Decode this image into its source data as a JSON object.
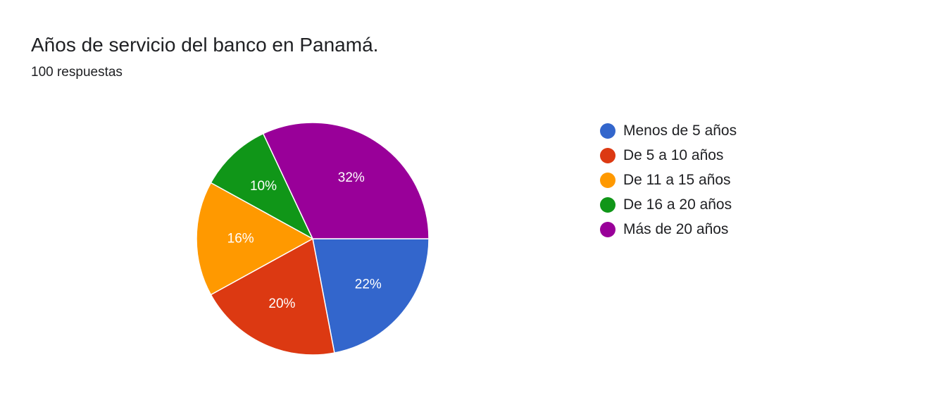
{
  "header": {
    "title": "Años de servicio del banco en Panamá.",
    "subtitle": "100 respuestas"
  },
  "chart_data": {
    "type": "pie",
    "title": "Años de servicio del banco en Panamá.",
    "total_responses": 100,
    "slices": [
      {
        "label": "Menos de 5 años",
        "value": 22,
        "percent_label": "22%",
        "color": "#3366cc"
      },
      {
        "label": "De 5 a 10 años",
        "value": 20,
        "percent_label": "20%",
        "color": "#dc3912"
      },
      {
        "label": "De 11 a 15 años",
        "value": 16,
        "percent_label": "16%",
        "color": "#ff9900"
      },
      {
        "label": "De 16 a 20 años",
        "value": 10,
        "percent_label": "10%",
        "color": "#109618"
      },
      {
        "label": "Más de 20 años",
        "value": 32,
        "percent_label": "32%",
        "color": "#990099"
      }
    ],
    "legend_position": "right"
  }
}
